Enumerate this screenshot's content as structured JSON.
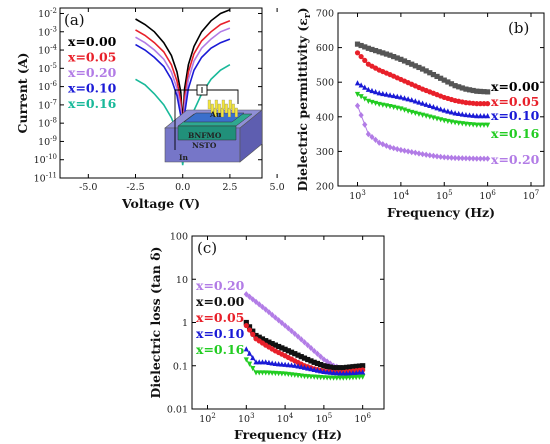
{
  "chart_data": [
    {
      "type": "line",
      "panel_label": "(a)",
      "xlabel": "Voltage (V)",
      "ylabel": "Current (A)",
      "xlim": [
        -6.5,
        4.2
      ],
      "xticks": [
        "-5.0",
        "-2.5",
        "0.0",
        "2.5",
        "5.0"
      ],
      "ylog": true,
      "ylim_exp": [
        -11,
        -1.7
      ],
      "yticks": [
        "10-11",
        "10-10",
        "10-9",
        "10-8",
        "10-7",
        "10-6",
        "10-5",
        "10-4",
        "10-3",
        "10-2"
      ],
      "legend": [
        "x=0.00",
        "x=0.05",
        "x=0.20",
        "x=0.10",
        "x=0.16"
      ],
      "inset_labels": [
        "Au",
        "BNFMO",
        "NSTO",
        "In"
      ],
      "series": [
        {
          "name": "x=0.00",
          "color": "#000000",
          "x": [
            -2.5,
            -2,
            -1.5,
            -1,
            -0.6,
            -0.3,
            -0.1,
            0,
            0.1,
            0.3,
            0.6,
            1,
            1.5,
            2,
            2.5
          ],
          "log_y": [
            -2.3,
            -2.6,
            -3.0,
            -3.6,
            -4.3,
            -5.2,
            -6.3,
            -8.0,
            -6.1,
            -4.8,
            -3.8,
            -3.0,
            -2.4,
            -2.0,
            -1.8
          ]
        },
        {
          "name": "x=0.05",
          "color": "#e8202a",
          "x": [
            -2.5,
            -2,
            -1.5,
            -1,
            -0.6,
            -0.3,
            -0.1,
            0,
            0.1,
            0.3,
            0.6,
            1,
            1.5,
            2,
            2.5
          ],
          "log_y": [
            -2.9,
            -3.2,
            -3.6,
            -4.1,
            -4.8,
            -5.7,
            -6.8,
            -8.5,
            -6.6,
            -5.2,
            -4.2,
            -3.5,
            -3.0,
            -2.6,
            -2.4
          ]
        },
        {
          "name": "x=0.20",
          "color": "#b27ce6",
          "x": [
            -2.5,
            -2,
            -1.5,
            -1,
            -0.6,
            -0.3,
            -0.1,
            0,
            0.1,
            0.3,
            0.6,
            1,
            1.5,
            2,
            2.5
          ],
          "log_y": [
            -3.3,
            -3.6,
            -4.0,
            -4.5,
            -5.2,
            -6.1,
            -7.2,
            -9.0,
            -7.0,
            -5.6,
            -4.6,
            -3.9,
            -3.4,
            -3.0,
            -2.8
          ]
        },
        {
          "name": "x=0.10",
          "color": "#1a1ad6",
          "x": [
            -2.5,
            -2,
            -1.5,
            -1,
            -0.6,
            -0.3,
            -0.1,
            0,
            0.1,
            0.3,
            0.6,
            1,
            1.5,
            2,
            2.5
          ],
          "log_y": [
            -3.7,
            -4.0,
            -4.4,
            -4.9,
            -5.6,
            -6.5,
            -7.6,
            -9.5,
            -7.5,
            -6.1,
            -5.1,
            -4.4,
            -3.9,
            -3.6,
            -3.4
          ]
        },
        {
          "name": "x=0.16",
          "color": "#19b99a",
          "x": [
            -2.5,
            -2,
            -1.5,
            -1,
            -0.6,
            -0.3,
            -0.1,
            0,
            0.1,
            0.3,
            0.6,
            1,
            1.5,
            2,
            2.5
          ],
          "log_y": [
            -5.6,
            -5.9,
            -6.4,
            -7.0,
            -7.7,
            -8.5,
            -9.2,
            -10.3,
            -9.3,
            -8.3,
            -7.3,
            -6.4,
            -5.6,
            -5.1,
            -4.8
          ]
        }
      ]
    },
    {
      "type": "line",
      "panel_label": "(b)",
      "xlabel": "Frequency (Hz)",
      "ylabel": "Dielectric permittivity (εr)",
      "xlog": true,
      "xlim_exp": [
        2.55,
        7.3
      ],
      "xticks": [
        "10^3",
        "10^4",
        "10^5",
        "10^6",
        "10^7"
      ],
      "ylim": [
        200,
        700
      ],
      "yticks": [
        "200",
        "300",
        "400",
        "500",
        "600",
        "700"
      ],
      "legend": [
        "x=0.00",
        "x=0.05",
        "x=0.10",
        "x=0.16",
        "x=0.20"
      ],
      "series": [
        {
          "name": "x=0.00",
          "color": "#555555",
          "marker": "square",
          "log_x": [
            3,
            3.25,
            3.5,
            3.75,
            4,
            4.25,
            4.5,
            4.75,
            5,
            5.25,
            5.5,
            5.75,
            6
          ],
          "y": [
            610,
            598,
            588,
            578,
            566,
            552,
            538,
            522,
            506,
            490,
            480,
            474,
            472
          ]
        },
        {
          "name": "x=0.05",
          "color": "#e8202a",
          "marker": "circle",
          "log_x": [
            3,
            3.25,
            3.5,
            3.75,
            4,
            4.25,
            4.5,
            4.75,
            5,
            5.25,
            5.5,
            5.75,
            6
          ],
          "y": [
            585,
            552,
            535,
            522,
            508,
            494,
            480,
            468,
            456,
            447,
            441,
            438,
            438
          ]
        },
        {
          "name": "x=0.10",
          "color": "#1a1ad6",
          "marker": "triangle-up",
          "log_x": [
            3,
            3.25,
            3.5,
            3.75,
            4,
            4.25,
            4.5,
            4.75,
            5,
            5.25,
            5.5,
            5.75,
            6
          ],
          "y": [
            497,
            478,
            468,
            462,
            456,
            448,
            438,
            428,
            418,
            410,
            405,
            402,
            402
          ]
        },
        {
          "name": "x=0.16",
          "color": "#22cc22",
          "marker": "triangle-down",
          "log_x": [
            3,
            3.25,
            3.5,
            3.75,
            4,
            4.25,
            4.5,
            4.75,
            5,
            5.25,
            5.5,
            5.75,
            6
          ],
          "y": [
            466,
            446,
            437,
            431,
            424,
            414,
            406,
            398,
            390,
            384,
            380,
            377,
            377
          ]
        },
        {
          "name": "x=0.20",
          "color": "#b27ce6",
          "marker": "diamond",
          "log_x": [
            3,
            3.25,
            3.5,
            3.75,
            4,
            4.25,
            4.5,
            4.75,
            5,
            5.25,
            5.5,
            5.75,
            6
          ],
          "y": [
            432,
            350,
            325,
            312,
            304,
            298,
            292,
            287,
            283,
            281,
            280,
            279,
            279
          ]
        }
      ]
    },
    {
      "type": "line",
      "panel_label": "(c)",
      "xlabel": "Frequency (Hz)",
      "ylabel": "Dielectric loss (tan δ)",
      "xlog": true,
      "xlim_exp": [
        1.6,
        6.55
      ],
      "xticks": [
        "10^2",
        "10^3",
        "10^4",
        "10^5",
        "10^6"
      ],
      "ylog": true,
      "ylim_exp": [
        -2,
        2
      ],
      "yticks": [
        "0.01",
        "0.1",
        "1",
        "10",
        "100"
      ],
      "legend": [
        "x=0.20",
        "x=0.00",
        "x=0.05",
        "x=0.10",
        "x=0.16"
      ],
      "series": [
        {
          "name": "x=0.20",
          "color": "#b27ce6",
          "marker": "diamond",
          "log_x": [
            3,
            3.25,
            3.5,
            3.75,
            4,
            4.25,
            4.5,
            4.75,
            5,
            5.25,
            5.5,
            5.75,
            6
          ],
          "y": [
            4.5,
            3.0,
            2.0,
            1.3,
            0.85,
            0.55,
            0.35,
            0.22,
            0.14,
            0.1,
            0.085,
            0.08,
            0.08
          ]
        },
        {
          "name": "x=0.00",
          "color": "#111111",
          "marker": "square",
          "log_x": [
            3,
            3.25,
            3.5,
            3.75,
            4,
            4.25,
            4.5,
            4.75,
            5,
            5.25,
            5.5,
            5.75,
            6
          ],
          "y": [
            1.0,
            0.5,
            0.38,
            0.3,
            0.24,
            0.19,
            0.15,
            0.12,
            0.1,
            0.09,
            0.09,
            0.095,
            0.1
          ]
        },
        {
          "name": "x=0.05",
          "color": "#e8202a",
          "marker": "circle",
          "log_x": [
            3,
            3.25,
            3.5,
            3.75,
            4,
            4.25,
            4.5,
            4.75,
            5,
            5.25,
            5.5,
            5.75,
            6
          ],
          "y": [
            0.85,
            0.42,
            0.3,
            0.22,
            0.17,
            0.13,
            0.1,
            0.085,
            0.075,
            0.07,
            0.07,
            0.075,
            0.08
          ]
        },
        {
          "name": "x=0.10",
          "color": "#1a1ad6",
          "marker": "triangle-up",
          "log_x": [
            3,
            3.25,
            3.5,
            3.75,
            4,
            4.25,
            4.5,
            4.75,
            5,
            5.25,
            5.5,
            5.75,
            6
          ],
          "y": [
            0.24,
            0.12,
            0.12,
            0.11,
            0.105,
            0.1,
            0.09,
            0.08,
            0.072,
            0.068,
            0.066,
            0.067,
            0.07
          ]
        },
        {
          "name": "x=0.16",
          "color": "#22cc22",
          "marker": "triangle-down",
          "log_x": [
            3,
            3.25,
            3.5,
            3.75,
            4,
            4.25,
            4.5,
            4.75,
            5,
            5.25,
            5.5,
            5.75,
            6
          ],
          "y": [
            0.14,
            0.07,
            0.07,
            0.068,
            0.066,
            0.062,
            0.058,
            0.056,
            0.054,
            0.053,
            0.053,
            0.054,
            0.056
          ]
        }
      ]
    }
  ]
}
